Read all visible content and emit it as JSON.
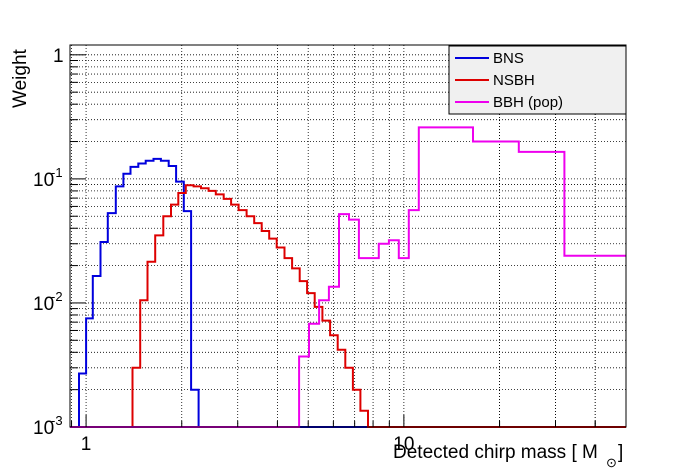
{
  "chart_data": {
    "type": "line",
    "xlabel": "Detected chirp mass [ M",
    "xlabel_sub": "⊙",
    "xlabel_end": "]",
    "ylabel": "Weight",
    "x_scale": "log",
    "y_scale": "log",
    "xlim": [
      0.89,
      50
    ],
    "ylim": [
      0.001,
      1.2
    ],
    "grid": true,
    "legend_position": "top-right",
    "x_ticks": [
      {
        "value": 1,
        "label": "1"
      },
      {
        "value": 10,
        "label": "10"
      }
    ],
    "y_ticks": [
      {
        "value": 0.001,
        "base": "10",
        "exp": "-3"
      },
      {
        "value": 0.01,
        "base": "10",
        "exp": "-2"
      },
      {
        "value": 0.1,
        "base": "10",
        "exp": "-1"
      },
      {
        "value": 1,
        "base": "1",
        "exp": ""
      }
    ],
    "series": [
      {
        "name": "BNS",
        "color": "#0000dd",
        "steps": [
          [
            0.89,
            0.001
          ],
          [
            0.95,
            0.0027
          ],
          [
            1.0,
            0.0075
          ],
          [
            1.05,
            0.0165
          ],
          [
            1.11,
            0.031
          ],
          [
            1.17,
            0.053
          ],
          [
            1.24,
            0.087
          ],
          [
            1.31,
            0.11
          ],
          [
            1.38,
            0.125
          ],
          [
            1.46,
            0.133
          ],
          [
            1.54,
            0.14
          ],
          [
            1.63,
            0.145
          ],
          [
            1.72,
            0.14
          ],
          [
            1.82,
            0.127
          ],
          [
            1.92,
            0.095
          ],
          [
            2.03,
            0.055
          ],
          [
            2.14,
            0.002
          ],
          [
            2.26,
            0.001
          ],
          [
            50,
            null
          ]
        ]
      },
      {
        "name": "NSBH",
        "color": "#dd0000",
        "steps": [
          [
            0.89,
            0.001
          ],
          [
            1.4,
            0.003
          ],
          [
            1.48,
            0.0105
          ],
          [
            1.56,
            0.0215
          ],
          [
            1.65,
            0.035
          ],
          [
            1.75,
            0.05
          ],
          [
            1.85,
            0.062
          ],
          [
            1.95,
            0.077
          ],
          [
            2.06,
            0.089
          ],
          [
            2.18,
            0.087
          ],
          [
            2.3,
            0.084
          ],
          [
            2.43,
            0.08
          ],
          [
            2.56,
            0.075
          ],
          [
            2.71,
            0.069
          ],
          [
            2.86,
            0.062
          ],
          [
            3.02,
            0.056
          ],
          [
            3.2,
            0.05
          ],
          [
            3.38,
            0.044
          ],
          [
            3.57,
            0.038
          ],
          [
            3.77,
            0.033
          ],
          [
            3.98,
            0.028
          ],
          [
            4.21,
            0.023
          ],
          [
            4.45,
            0.019
          ],
          [
            4.7,
            0.015
          ],
          [
            4.96,
            0.012
          ],
          [
            5.24,
            0.0093
          ],
          [
            5.54,
            0.0072
          ],
          [
            5.86,
            0.0055
          ],
          [
            6.19,
            0.0042
          ],
          [
            6.54,
            0.003
          ],
          [
            6.91,
            0.002
          ],
          [
            7.3,
            0.00135
          ],
          [
            7.71,
            0.001
          ],
          [
            50,
            null
          ]
        ]
      },
      {
        "name": "BBH (pop)",
        "color": "#ee00ee",
        "steps": [
          [
            0.89,
            0.001
          ],
          [
            4.68,
            0.0037
          ],
          [
            5.03,
            0.0068
          ],
          [
            5.41,
            0.0105
          ],
          [
            5.81,
            0.0135
          ],
          [
            6.25,
            0.052
          ],
          [
            6.72,
            0.047
          ],
          [
            7.22,
            0.023
          ],
          [
            7.76,
            0.023
          ],
          [
            8.34,
            0.03
          ],
          [
            8.97,
            0.032
          ],
          [
            9.64,
            0.023
          ],
          [
            10.36,
            0.056
          ],
          [
            11.14,
            0.26
          ],
          [
            16.5,
            0.2
          ],
          [
            23.0,
            0.165
          ],
          [
            32.0,
            0.024
          ],
          [
            50,
            null
          ]
        ]
      }
    ]
  }
}
